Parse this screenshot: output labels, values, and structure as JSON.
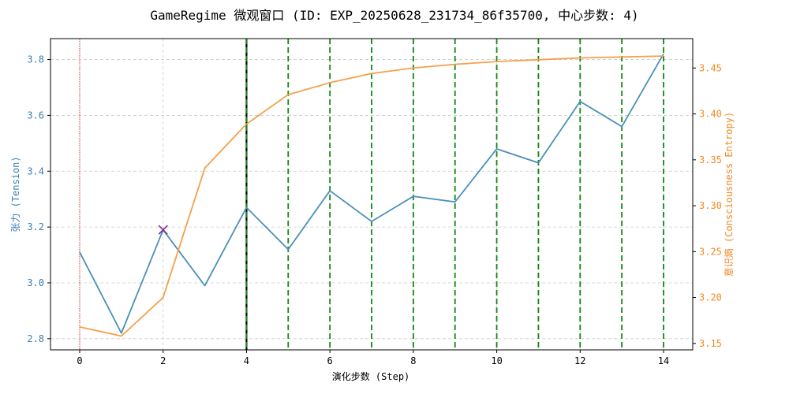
{
  "chart_data": {
    "type": "line",
    "title": "GameRegime 微观窗口 (ID: EXP_20250628_231734_86f35700, 中心步数: 4)",
    "xlabel": "演化步数 (Step)",
    "ylabel_left": "张力 (Tension)",
    "ylabel_right": "意识熵 (Consciousness Entropy)",
    "x": [
      0,
      1,
      2,
      3,
      4,
      5,
      6,
      7,
      8,
      9,
      10,
      11,
      12,
      13,
      14
    ],
    "xlim": [
      -0.7,
      14.7
    ],
    "ylim_left": [
      2.76,
      3.875
    ],
    "ylim_right": [
      3.143,
      3.482
    ],
    "xticks": [
      0,
      2,
      4,
      6,
      8,
      10,
      12,
      14
    ],
    "yticks_left": [
      2.8,
      3.0,
      3.2,
      3.4,
      3.6,
      3.8
    ],
    "yticks_right": [
      3.15,
      3.2,
      3.25,
      3.3,
      3.35,
      3.4,
      3.45
    ],
    "grid": true,
    "series": [
      {
        "axis": "left",
        "color": "#4a90b8",
        "values": [
          3.11,
          2.82,
          3.19,
          2.99,
          3.27,
          3.12,
          3.33,
          3.22,
          3.31,
          3.29,
          3.48,
          3.43,
          3.65,
          3.56,
          3.82
        ]
      },
      {
        "axis": "right",
        "color": "#f5a04a",
        "values": [
          3.168,
          3.158,
          3.2,
          3.341,
          3.389,
          3.421,
          3.434,
          3.444,
          3.45,
          3.454,
          3.457,
          3.459,
          3.461,
          3.462,
          3.463
        ]
      }
    ],
    "markers": [
      {
        "x": 2,
        "y": 3.19,
        "axis": "left",
        "shape": "x",
        "color": "#7b2d8e"
      }
    ],
    "vlines": [
      {
        "x": 0,
        "color": "#e03030",
        "style": "dotted"
      },
      {
        "x": 4,
        "color": "#000000",
        "style": "solid"
      },
      {
        "x": 4,
        "color": "#118811",
        "style": "dashed"
      },
      {
        "x": 5,
        "color": "#118811",
        "style": "dashed"
      },
      {
        "x": 6,
        "color": "#118811",
        "style": "dashed"
      },
      {
        "x": 7,
        "color": "#118811",
        "style": "dashed"
      },
      {
        "x": 8,
        "color": "#118811",
        "style": "dashed"
      },
      {
        "x": 9,
        "color": "#118811",
        "style": "dashed"
      },
      {
        "x": 10,
        "color": "#118811",
        "style": "dashed"
      },
      {
        "x": 11,
        "color": "#118811",
        "style": "dashed"
      },
      {
        "x": 12,
        "color": "#118811",
        "style": "dashed"
      },
      {
        "x": 13,
        "color": "#118811",
        "style": "dashed"
      },
      {
        "x": 14,
        "color": "#118811",
        "style": "dashed"
      }
    ],
    "colors": {
      "left_axis": "#3a7fb0",
      "right_axis": "#f08a24",
      "grid": "#cccccc",
      "axis_line": "#000000"
    }
  }
}
